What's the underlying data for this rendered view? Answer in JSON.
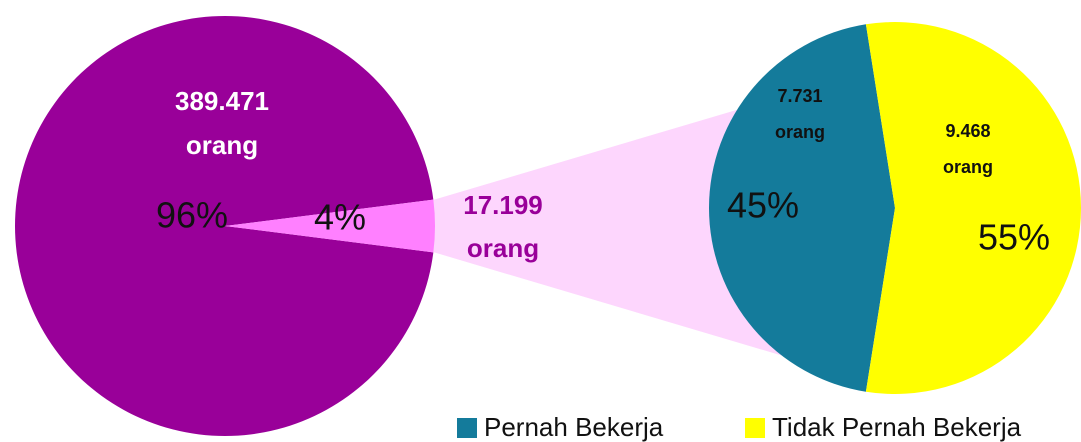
{
  "chart_data": [
    {
      "type": "pie",
      "values": [
        96,
        4
      ],
      "value_labels": [
        "96%",
        "4%"
      ],
      "colors": [
        "#990099",
        "#ff80ff"
      ],
      "count_labels": [
        "389.471",
        "17.199"
      ],
      "count_unit": "orang"
    },
    {
      "type": "pie",
      "categories": [
        "Pernah Bekerja",
        "Tidak Pernah Bekerja"
      ],
      "values": [
        45,
        55
      ],
      "value_labels": [
        "45%",
        "55%"
      ],
      "colors": [
        "#147b9b",
        "#ffff00"
      ],
      "count_labels": [
        "7.731",
        "9.468"
      ],
      "count_unit": "orang",
      "legend": "bottom"
    }
  ]
}
